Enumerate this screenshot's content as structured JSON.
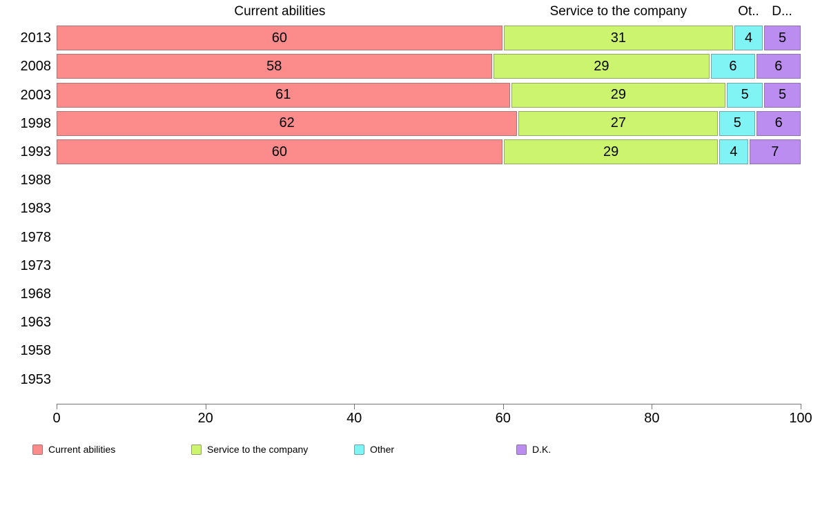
{
  "chart_data": {
    "type": "bar",
    "orientation": "horizontal",
    "stacked": true,
    "title": "",
    "categories": [
      "2013",
      "2008",
      "2003",
      "1998",
      "1993",
      "1988",
      "1983",
      "1978",
      "1973",
      "1968",
      "1963",
      "1958",
      "1953"
    ],
    "series": [
      {
        "name": "Current abilities",
        "color": "#FC8C8C",
        "border": "#C06A6A",
        "values": [
          60,
          58,
          61,
          62,
          60,
          null,
          null,
          null,
          null,
          null,
          null,
          null,
          null
        ]
      },
      {
        "name": "Service to the company",
        "color": "#CCF46E",
        "border": "#9DBF52",
        "values": [
          31,
          29,
          29,
          27,
          29,
          null,
          null,
          null,
          null,
          null,
          null,
          null,
          null
        ]
      },
      {
        "name": "Other",
        "color": "#80F4F4",
        "border": "#5FBFBF",
        "values": [
          4,
          6,
          5,
          5,
          4,
          null,
          null,
          null,
          null,
          null,
          null,
          null,
          null
        ]
      },
      {
        "name": "D.K.",
        "color": "#BC8DF0",
        "border": "#9268C2",
        "values": [
          5,
          6,
          5,
          6,
          7,
          null,
          null,
          null,
          null,
          null,
          null,
          null,
          null
        ]
      }
    ],
    "column_headers": [
      "Current abilities",
      "Service to the company",
      "Ot..",
      "D..."
    ],
    "x_axis": {
      "min": 0,
      "max": 100,
      "ticks": [
        0,
        20,
        40,
        60,
        80,
        100
      ]
    },
    "legend": {
      "position": "bottom",
      "entries": [
        {
          "label": "Current abilities",
          "color": "#FC8C8C"
        },
        {
          "label": "Service to the company",
          "color": "#CCF46E"
        },
        {
          "label": "Other",
          "color": "#80F4F4"
        },
        {
          "label": "D.K.",
          "color": "#BC8DF0"
        }
      ]
    },
    "grid": false,
    "axis_color": "#757575",
    "text_color": "#000000"
  }
}
